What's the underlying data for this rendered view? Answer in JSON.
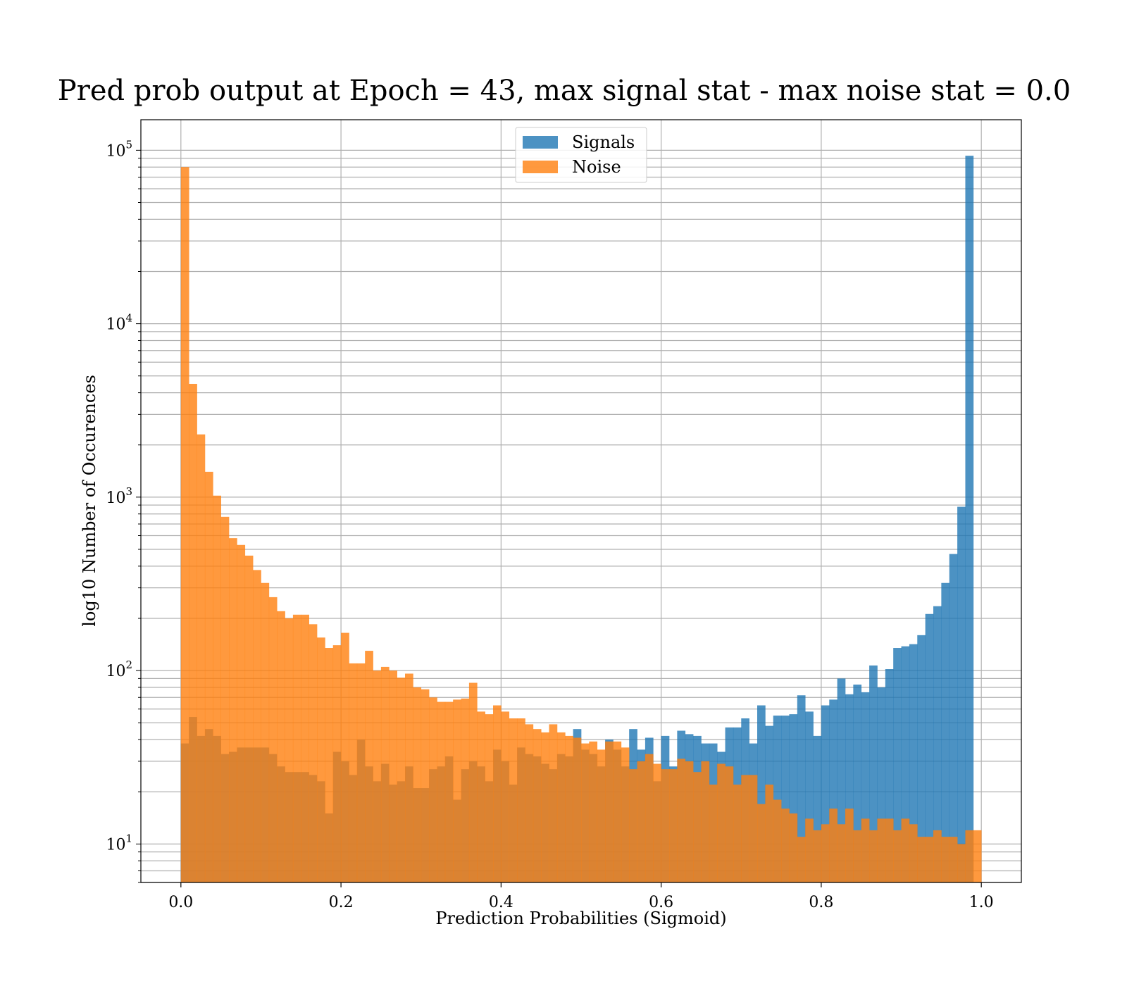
{
  "chart_data": {
    "type": "bar",
    "subtype": "overlaid-histogram",
    "title": "Pred prob output at Epoch = 43, max signal stat - max noise stat = 0.0",
    "xlabel": "Prediction Probabilities (Sigmoid)",
    "ylabel": "log10 Number of Occurences",
    "x_range": [
      -0.05,
      1.05
    ],
    "y_scale": "log",
    "y_range": [
      6,
      150000
    ],
    "x_ticks": [
      "0.0",
      "0.2",
      "0.4",
      "0.6",
      "0.8",
      "1.0"
    ],
    "y_ticks": [
      {
        "base": "10",
        "exp": "1"
      },
      {
        "base": "10",
        "exp": "2"
      },
      {
        "base": "10",
        "exp": "3"
      },
      {
        "base": "10",
        "exp": "4"
      },
      {
        "base": "10",
        "exp": "5"
      }
    ],
    "grid": true,
    "legend_position": "top-center",
    "bin_width": 0.01,
    "bin_start": 0.0,
    "series": [
      {
        "name": "Signals",
        "color": "#1f77b4",
        "opacity": 0.8,
        "values": [
          38,
          54,
          42,
          46,
          42,
          33,
          34,
          36,
          36,
          36,
          36,
          33,
          28,
          26,
          26,
          26,
          25,
          23,
          15,
          34,
          30,
          25,
          40,
          28,
          23,
          29,
          22,
          23,
          28,
          21,
          21,
          27,
          28,
          32,
          18,
          27,
          30,
          28,
          23,
          35,
          30,
          22,
          36,
          33,
          32,
          29,
          27,
          33,
          32,
          46,
          35,
          33,
          28,
          40,
          35,
          28,
          46,
          35,
          41,
          23,
          42,
          28,
          45,
          43,
          42,
          38,
          38,
          34,
          47,
          47,
          53,
          38,
          63,
          48,
          55,
          55,
          56,
          72,
          58,
          42,
          63,
          68,
          90,
          73,
          83,
          75,
          107,
          80,
          102,
          135,
          138,
          142,
          160,
          212,
          235,
          320,
          470,
          880,
          93000,
          0
        ]
      },
      {
        "name": "Noise",
        "color": "#ff7f0e",
        "opacity": 0.8,
        "values": [
          80000,
          4500,
          2300,
          1400,
          1020,
          770,
          580,
          530,
          460,
          380,
          320,
          265,
          220,
          200,
          210,
          210,
          185,
          155,
          135,
          140,
          165,
          110,
          110,
          130,
          100,
          105,
          100,
          91,
          96,
          80,
          78,
          70,
          66,
          66,
          68,
          69,
          85,
          58,
          56,
          63,
          58,
          53,
          53,
          49,
          46,
          44,
          49,
          44,
          42,
          41,
          38,
          39,
          35,
          39,
          39,
          36,
          27,
          30,
          33,
          29,
          27,
          27,
          31,
          30,
          26,
          30,
          22,
          29,
          28,
          22,
          25,
          25,
          17,
          22,
          18,
          16,
          15,
          11,
          14,
          12,
          13,
          16,
          13,
          16,
          12,
          14,
          12,
          14,
          14,
          12,
          14,
          13,
          11,
          11,
          12,
          11,
          11,
          10,
          12,
          12
        ]
      }
    ]
  }
}
